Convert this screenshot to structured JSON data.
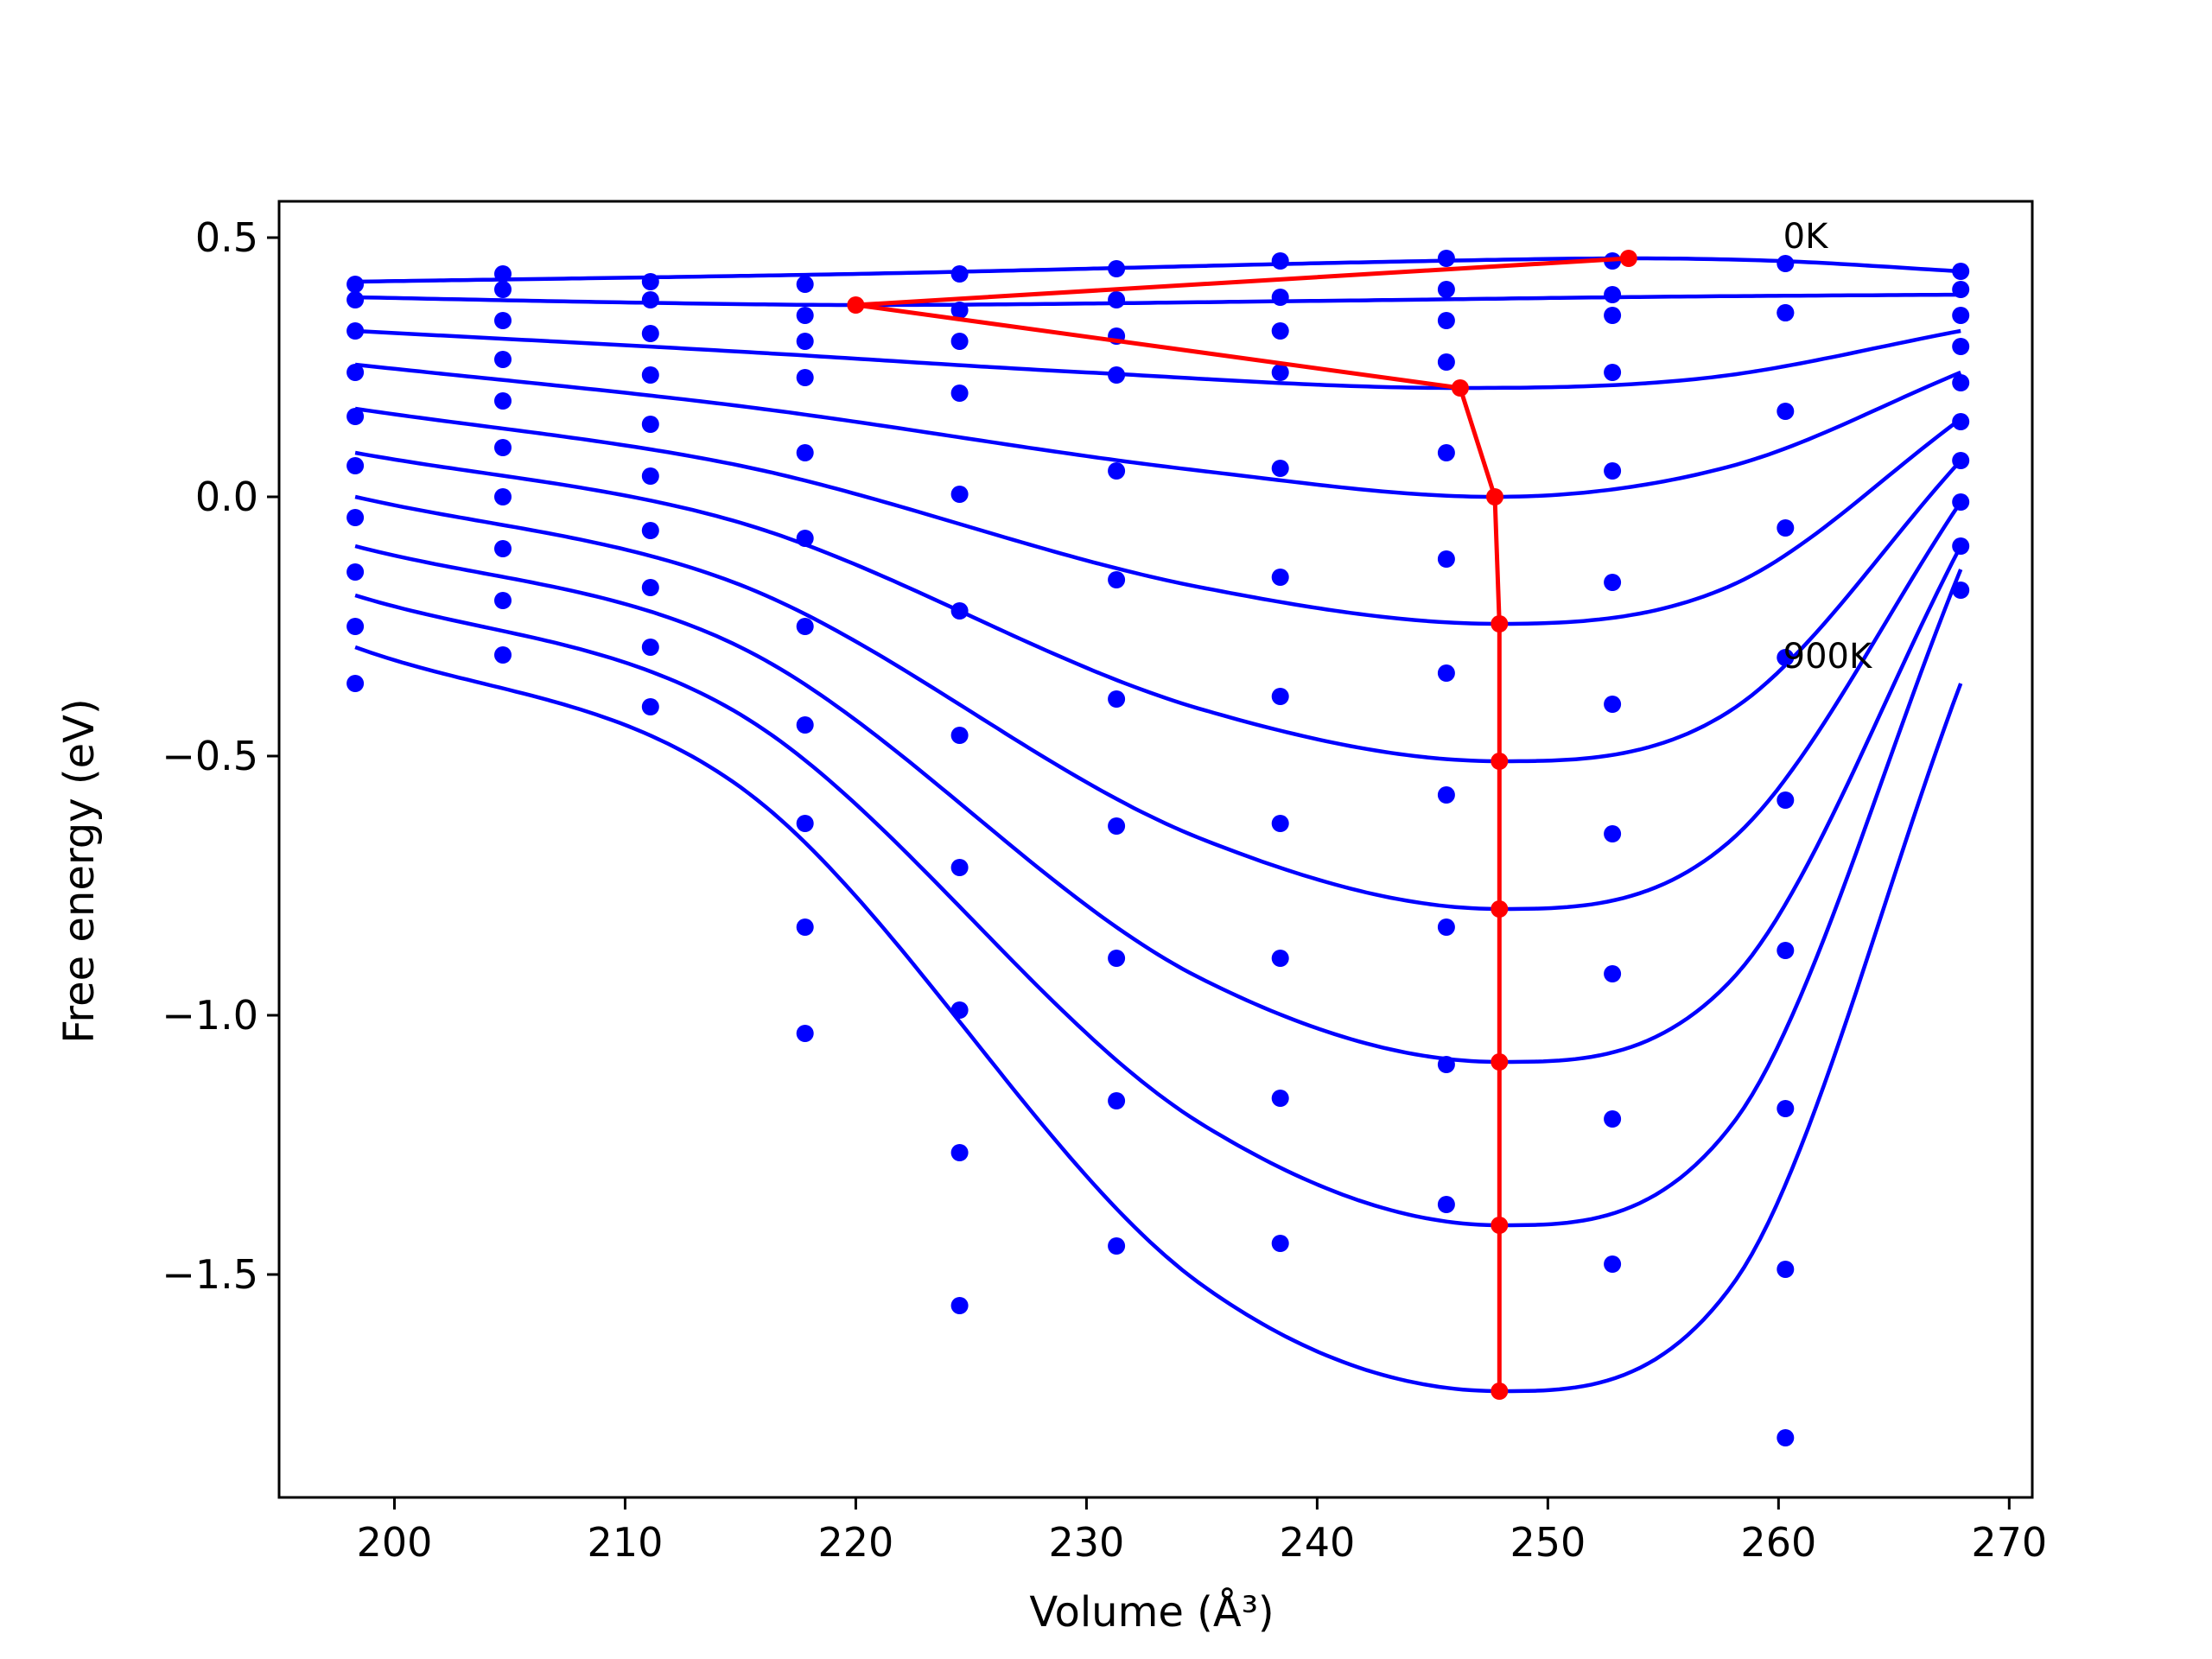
{
  "chart_data": {
    "type": "line",
    "xlabel": "Volume (Å³)",
    "ylabel": "Free energy (eV)",
    "xlim": [
      195,
      271
    ],
    "ylim": [
      -1.93,
      0.57
    ],
    "xticks": [
      200,
      210,
      220,
      230,
      240,
      250,
      260,
      270
    ],
    "yticks": [
      0.5,
      0.0,
      -0.5,
      -1.0,
      -1.5
    ],
    "ytick_labels": [
      "0.5",
      "0.0",
      "−0.5",
      "−1.0",
      "−1.5"
    ],
    "grid": false,
    "annotations": [
      {
        "text": "0K",
        "x": 260.2,
        "y": 0.48
      },
      {
        "text": "900K",
        "x": 260.2,
        "y": -0.33
      }
    ],
    "sample_volumes": [
      198.3,
      204.7,
      211.1,
      217.8,
      224.5,
      231.3,
      238.4,
      245.6,
      252.8,
      260.3,
      267.9
    ],
    "points": [
      [
        0.41,
        0.43,
        0.415,
        0.41,
        0.43,
        0.44,
        0.455,
        0.46,
        0.455,
        0.45,
        0.435
      ],
      [
        0.38,
        0.4,
        0.38,
        0.35,
        0.36,
        0.38,
        0.385,
        0.4,
        0.39,
        0.355,
        0.4
      ],
      [
        0.32,
        0.34,
        0.315,
        0.3,
        0.3,
        0.31,
        0.32,
        0.34,
        0.35,
        0.355,
        0.35
      ],
      [
        0.24,
        0.265,
        0.235,
        0.23,
        0.2,
        0.235,
        0.24,
        0.26,
        0.24,
        0.165,
        0.29
      ],
      [
        0.155,
        0.185,
        0.14,
        0.085,
        0.005,
        0.05,
        0.055,
        0.085,
        0.05,
        -0.06,
        0.22
      ],
      [
        0.06,
        0.095,
        0.04,
        -0.08,
        -0.22,
        -0.16,
        -0.155,
        -0.12,
        -0.165,
        -0.31,
        0.145
      ],
      [
        -0.04,
        0.0,
        -0.065,
        -0.25,
        -0.46,
        -0.39,
        -0.385,
        -0.34,
        -0.4,
        -0.585,
        0.07
      ],
      [
        -0.145,
        -0.1,
        -0.175,
        -0.44,
        -0.715,
        -0.635,
        -0.63,
        -0.575,
        -0.65,
        -0.875,
        -0.01
      ],
      [
        -0.25,
        -0.2,
        -0.29,
        -0.63,
        -0.99,
        -0.89,
        -0.89,
        -0.83,
        -0.92,
        -1.18,
        -0.095
      ],
      [
        -0.36,
        -0.305,
        -0.405,
        -0.83,
        -1.265,
        -1.165,
        -1.16,
        -1.095,
        -1.2,
        -1.49,
        -0.18
      ],
      [
        null,
        null,
        null,
        -1.035,
        -1.56,
        -1.445,
        -1.44,
        -1.365,
        -1.48,
        -1.815,
        null
      ]
    ],
    "series": [
      {
        "fit": {
          "x": [
            198.3,
            220,
            245,
            253.5,
            260,
            267.9
          ],
          "y": [
            0.415,
            0.43,
            0.455,
            0.46,
            0.455,
            0.435
          ]
        }
      },
      {
        "fit": {
          "x": [
            198.3,
            210,
            220,
            240,
            255,
            267.9
          ],
          "y": [
            0.385,
            0.375,
            0.37,
            0.378,
            0.386,
            0.39
          ]
        }
      },
      {
        "fit": {
          "x": [
            198.3,
            215,
            230,
            246,
            257,
            267.9
          ],
          "y": [
            0.32,
            0.28,
            0.24,
            0.21,
            0.23,
            0.32
          ]
        }
      },
      {
        "fit": {
          "x": [
            198.3,
            215,
            235,
            247.7,
            258,
            267.9
          ],
          "y": [
            0.255,
            0.175,
            0.05,
            0.0,
            0.06,
            0.24
          ]
        }
      },
      {
        "fit": {
          "x": [
            198.3,
            215,
            235,
            247.9,
            258,
            267.9
          ],
          "y": [
            0.17,
            0.06,
            -0.175,
            -0.245,
            -0.17,
            0.15
          ]
        }
      },
      {
        "fit": {
          "x": [
            198.3,
            215,
            235,
            247.9,
            258,
            267.9
          ],
          "y": [
            0.085,
            -0.05,
            -0.41,
            -0.51,
            -0.41,
            0.07
          ]
        }
      },
      {
        "fit": {
          "x": [
            198.3,
            215,
            235,
            247.9,
            258,
            267.9
          ],
          "y": [
            0.0,
            -0.17,
            -0.66,
            -0.795,
            -0.66,
            -0.01
          ]
        }
      },
      {
        "fit": {
          "x": [
            198.3,
            215,
            235,
            247.9,
            258,
            267.9
          ],
          "y": [
            -0.095,
            -0.29,
            -0.93,
            -1.09,
            -0.93,
            -0.095
          ]
        }
      },
      {
        "fit": {
          "x": [
            198.3,
            215,
            235,
            247.9,
            258,
            267.9
          ],
          "y": [
            -0.19,
            -0.42,
            -1.21,
            -1.405,
            -1.21,
            -0.14
          ]
        }
      },
      {
        "fit": {
          "x": [
            198.3,
            215,
            235,
            247.9,
            258,
            267.9
          ],
          "y": [
            -0.29,
            -0.56,
            -1.52,
            -1.725,
            -1.52,
            -0.36
          ]
        }
      }
    ],
    "minimum_path": {
      "x": [
        253.5,
        220.0,
        246.2,
        247.7,
        247.9,
        247.9,
        247.9,
        247.9,
        247.9,
        247.9
      ],
      "y": [
        0.46,
        0.37,
        0.21,
        0.0,
        -0.245,
        -0.51,
        -0.795,
        -1.09,
        -1.405,
        -1.725
      ]
    },
    "colors": {
      "fit": "#0000ff",
      "points": "#0000ff",
      "path": "#ff0000"
    }
  }
}
